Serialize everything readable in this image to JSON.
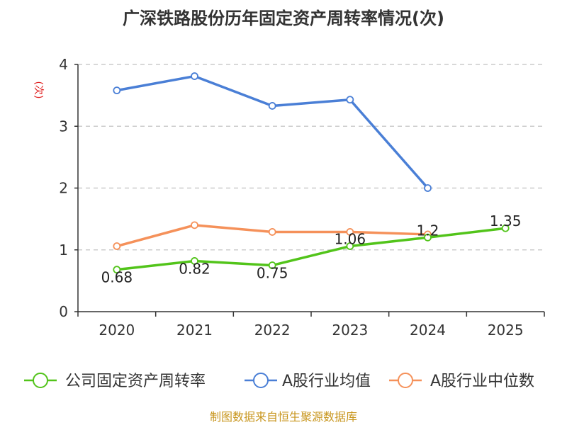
{
  "chart_data": {
    "type": "line",
    "title": "广深铁路股份历年固定资产周转率情况(次)",
    "ylabel": "(次)",
    "xlabel": "",
    "categories": [
      "2020",
      "2021",
      "2022",
      "2023",
      "2024",
      "2025"
    ],
    "ylim": [
      0,
      4
    ],
    "yticks": [
      0,
      1,
      2,
      3,
      4
    ],
    "grid": true,
    "legend_position": "bottom",
    "series": [
      {
        "name": "公司固定资产周转率",
        "values": [
          0.68,
          0.82,
          0.75,
          1.06,
          1.2,
          1.35
        ],
        "labels": [
          "0.68",
          "0.82",
          "0.75",
          "1.06",
          "1.2",
          "1.35"
        ],
        "color": "#52c41a",
        "show_labels": true
      },
      {
        "name": "A股行业均值",
        "values": [
          3.58,
          3.81,
          3.33,
          3.43,
          2.0,
          null
        ],
        "color": "#4a7fd6",
        "show_labels": false
      },
      {
        "name": "A股行业中位数",
        "values": [
          1.06,
          1.4,
          1.29,
          1.29,
          1.25,
          null
        ],
        "color": "#f5915a",
        "show_labels": false
      }
    ],
    "source": "制图数据来自恒生聚源数据库"
  }
}
